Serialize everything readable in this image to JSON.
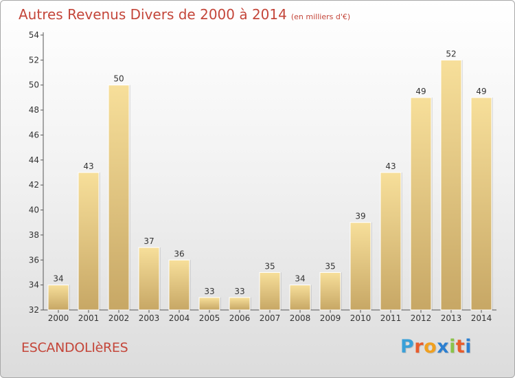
{
  "title": "Autres Revenus Divers de 2000 à 2014",
  "subtitle": "(en milliers d'€)",
  "town": "ESCANDOLIèRES",
  "logo": {
    "letters": [
      "P",
      "r",
      "o",
      "x",
      "i",
      "t",
      "i"
    ],
    "colors": [
      "#3aa0d8",
      "#e85c2c",
      "#f0a020",
      "#2c7fd0",
      "#8bc34a",
      "#e85c2c",
      "#2c7fd0"
    ]
  },
  "chart_data": {
    "type": "bar",
    "title": "Autres Revenus Divers de 2000 à 2014",
    "subtitle": "(en milliers d'€)",
    "categories": [
      "2000",
      "2001",
      "2002",
      "2003",
      "2004",
      "2005",
      "2006",
      "2007",
      "2008",
      "2009",
      "2010",
      "2011",
      "2012",
      "2013",
      "2014"
    ],
    "values": [
      34,
      43,
      50,
      37,
      36,
      33,
      33,
      35,
      34,
      35,
      39,
      43,
      49,
      52,
      49
    ],
    "ylim": [
      32,
      54
    ],
    "yticks": [
      32,
      34,
      36,
      38,
      40,
      42,
      44,
      46,
      48,
      50,
      52,
      54
    ],
    "grid": false,
    "bar_color": "#e8c878"
  }
}
